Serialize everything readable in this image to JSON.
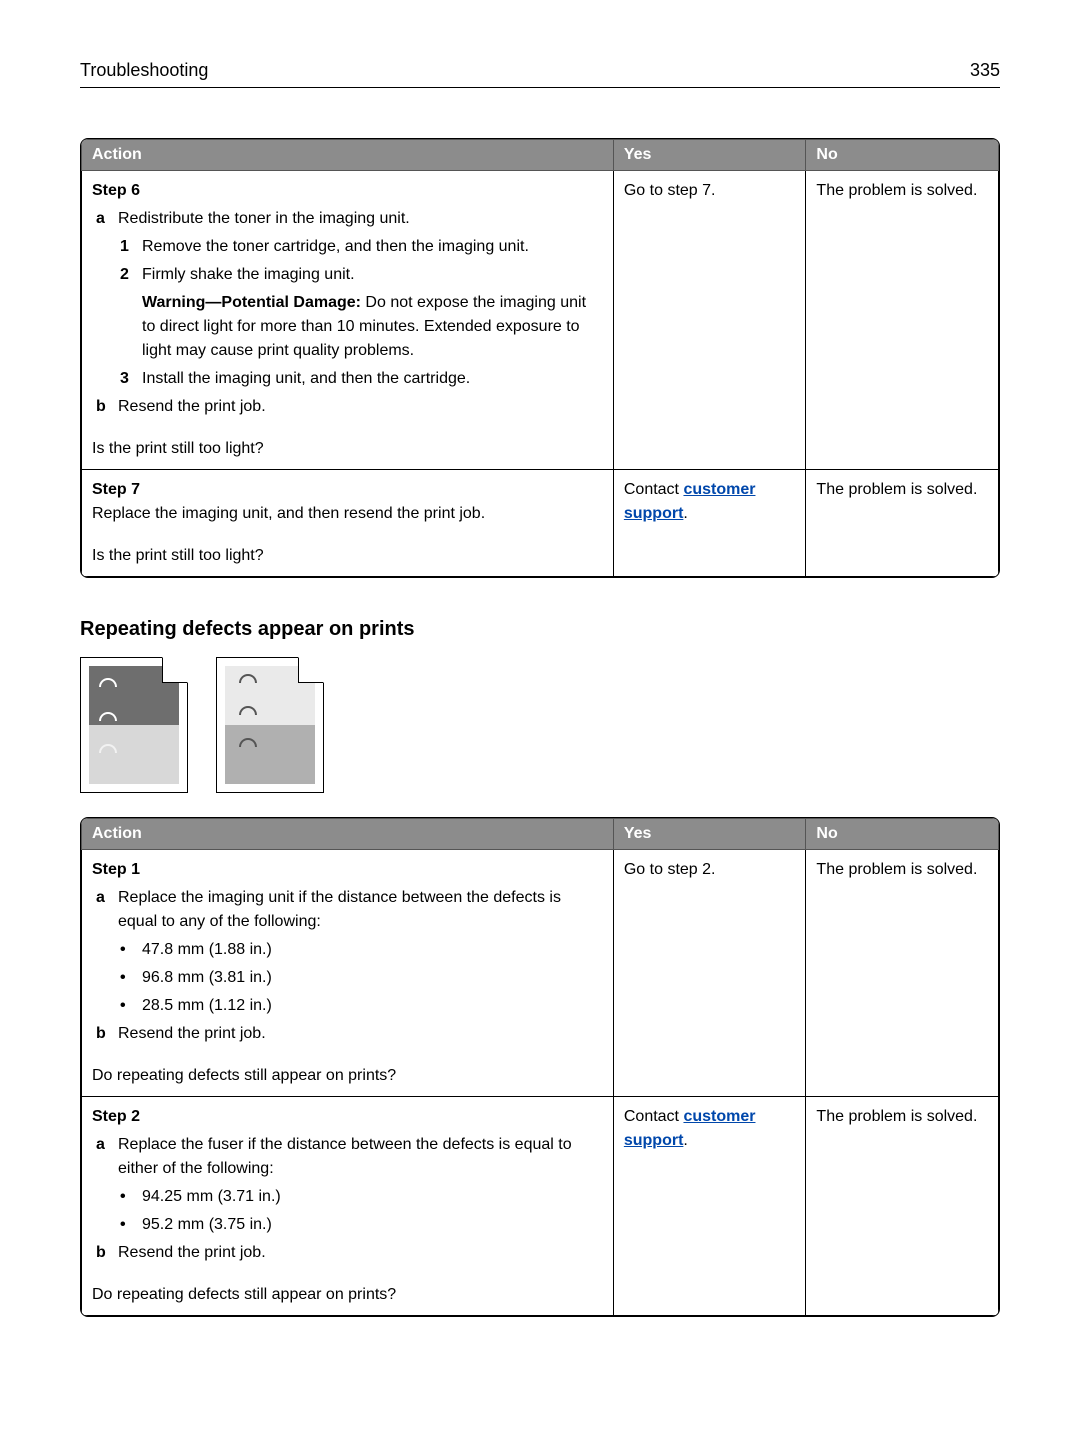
{
  "colors": {
    "header_bg": "#8c8c8c",
    "header_text": "#ffffff",
    "border": "#000000",
    "link": "#0047ab",
    "illus1_top": "#6e6e6e",
    "illus1_bot": "#d8d8d8",
    "illus2_top": "#eaeaea",
    "illus2_bot": "#b0b0b0"
  },
  "header": {
    "title": "Troubleshooting",
    "page_number": "335"
  },
  "table_headers": {
    "action": "Action",
    "yes": "Yes",
    "no": "No"
  },
  "table1": {
    "row1": {
      "step_label": "Step 6",
      "a_label": "a",
      "a_text": "Redistribute the toner in the imaging unit.",
      "item1_num": "1",
      "item1_text": "Remove the toner cartridge, and then the imaging unit.",
      "item2_num": "2",
      "item2_text": "Firmly shake the imaging unit.",
      "warn_label": "Warning—Potential Damage:",
      "warn_text": " Do not expose the imaging unit to direct light for more than 10 minutes. Extended exposure to light may cause print quality problems.",
      "item3_num": "3",
      "item3_text": "Install the imaging unit, and then the cartridge.",
      "b_label": "b",
      "b_text": "Resend the print job.",
      "question": "Is the print still too light?",
      "yes": "Go to step 7.",
      "no": "The problem is solved."
    },
    "row2": {
      "step_label": "Step 7",
      "body": "Replace the imaging unit, and then resend the print job.",
      "question": "Is the print still too light?",
      "yes_prefix": "Contact ",
      "yes_link": "customer support",
      "yes_suffix": ".",
      "no": "The problem is solved."
    }
  },
  "section_title": "Repeating defects appear on prints",
  "table2": {
    "row1": {
      "step_label": "Step 1",
      "a_label": "a",
      "a_text": "Replace the imaging unit if the distance between the defects is equal to any of the following:",
      "bullet1": "47.8 mm (1.88 in.)",
      "bullet2": "96.8 mm (3.81 in.)",
      "bullet3": "28.5 mm (1.12 in.)",
      "b_label": "b",
      "b_text": "Resend the print job.",
      "question": "Do repeating defects still appear on prints?",
      "yes": "Go to step 2.",
      "no": "The problem is solved."
    },
    "row2": {
      "step_label": "Step 2",
      "a_label": "a",
      "a_text": "Replace the fuser if the distance between the defects is equal to either of the following:",
      "bullet1": "94.25 mm (3.71 in.)",
      "bullet2": "95.2 mm (3.75 in.)",
      "b_label": "b",
      "b_text": "Resend the print job.",
      "question": "Do repeating defects still appear on prints?",
      "yes_prefix": "Contact ",
      "yes_link": "customer support",
      "yes_suffix": ".",
      "no": "The problem is solved."
    }
  }
}
